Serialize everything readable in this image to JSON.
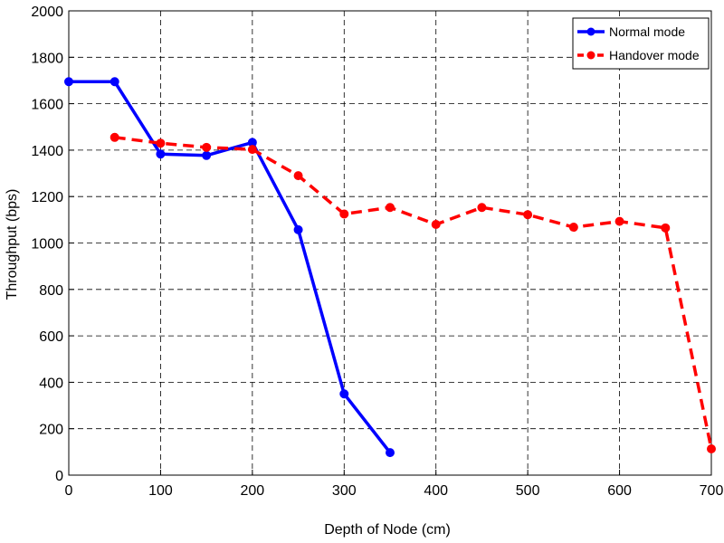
{
  "chart_data": {
    "type": "line",
    "title": "",
    "xlabel": "Depth of Node (cm)",
    "ylabel": "Throughput (bps)",
    "xlim": [
      0,
      700
    ],
    "ylim": [
      0,
      2000
    ],
    "x_ticks": [
      0,
      100,
      200,
      300,
      400,
      500,
      600,
      700
    ],
    "y_ticks": [
      0,
      200,
      400,
      600,
      800,
      1000,
      1200,
      1400,
      1600,
      1800,
      2000
    ],
    "grid": true,
    "legend_position": "top-right",
    "series": [
      {
        "name": "Normal mode",
        "color": "#0000ff",
        "line_style": "solid",
        "x": [
          0,
          50,
          100,
          150,
          200,
          250,
          300,
          350
        ],
        "y": [
          1695,
          1695,
          1383,
          1377,
          1433,
          1057,
          350,
          97
        ]
      },
      {
        "name": "Handover mode",
        "color": "#ff0000",
        "line_style": "dashed",
        "x": [
          50,
          100,
          150,
          200,
          250,
          300,
          350,
          400,
          450,
          500,
          550,
          600,
          650,
          700
        ],
        "y": [
          1455,
          1430,
          1412,
          1403,
          1290,
          1125,
          1153,
          1080,
          1153,
          1122,
          1068,
          1093,
          1065,
          113
        ]
      }
    ]
  }
}
